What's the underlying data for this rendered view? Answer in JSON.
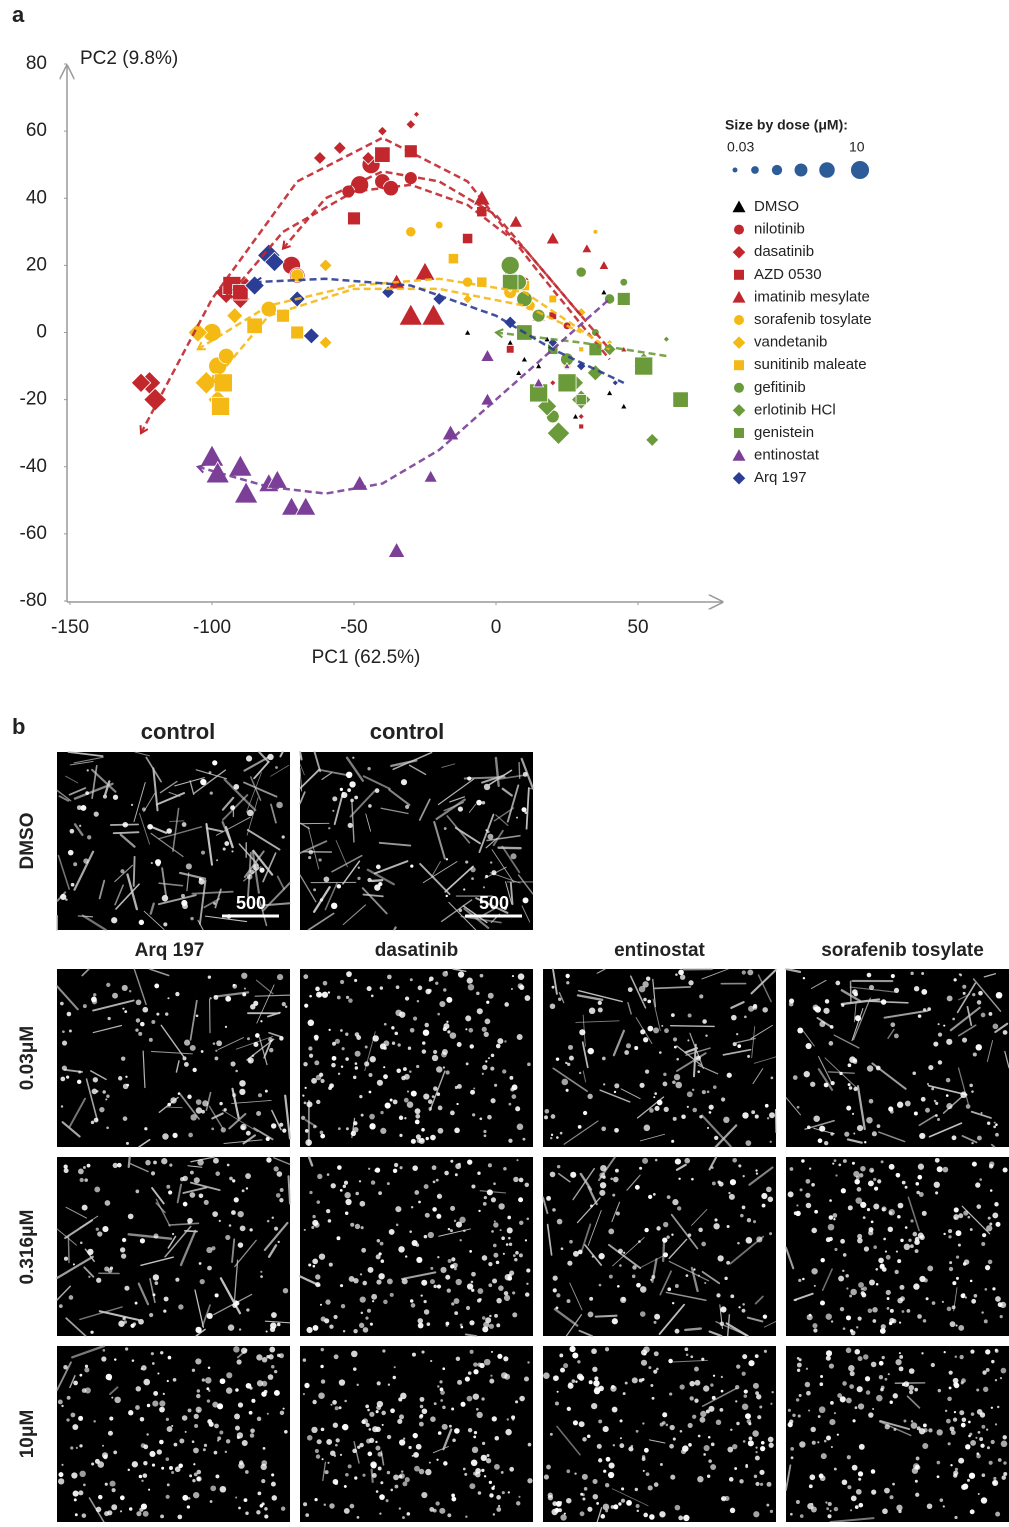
{
  "chart_data": {
    "type": "scatter",
    "panel_label": "a",
    "x_label": "PC1 (62.5%)",
    "y_label": "PC2 (9.8%)",
    "xlim": [
      -150,
      80
    ],
    "ylim": [
      -80,
      80
    ],
    "xticks": [
      -150,
      -100,
      -50,
      0,
      50
    ],
    "yticks": [
      -80,
      -60,
      -40,
      -20,
      0,
      20,
      40,
      60,
      80
    ],
    "grid": false,
    "size_legend": {
      "title": "Size by dose (μM):",
      "doses": [
        0.03,
        0.1,
        0.316,
        1,
        3.16,
        10
      ],
      "color": "#2e5c99"
    },
    "series": [
      {
        "name": "DMSO",
        "color": "#000000",
        "marker": "triangle",
        "x": [
          -10,
          5,
          10,
          15,
          20,
          25,
          30,
          35,
          40,
          45,
          38,
          28,
          18,
          8
        ],
        "values": [
          0,
          -3,
          -8,
          -10,
          5,
          -15,
          -20,
          -5,
          -18,
          -22,
          12,
          -25,
          -2,
          -12
        ],
        "sizes": [
          0.03,
          0.03,
          0.03,
          0.03,
          0.03,
          0.03,
          0.03,
          0.03,
          0.03,
          0.03,
          0.03,
          0.03,
          0.03,
          0.03
        ]
      },
      {
        "name": "nilotinib",
        "color": "#c1272d",
        "marker": "circle",
        "x": [
          -48,
          -44,
          -40,
          -37,
          -52,
          -72,
          -70,
          -30,
          5,
          10,
          25,
          35
        ],
        "values": [
          44,
          50,
          45,
          43,
          42,
          20,
          17,
          46,
          20,
          15,
          2,
          -5
        ],
        "sizes": [
          10,
          10,
          3.16,
          3.16,
          1,
          10,
          3.16,
          1,
          1,
          0.316,
          0.1,
          0.03
        ],
        "trend": {
          "x": [
            -75,
            -60,
            -40,
            -20,
            0,
            20,
            40
          ],
          "y": [
            25,
            40,
            48,
            45,
            35,
            15,
            -5
          ]
        }
      },
      {
        "name": "dasatinib",
        "color": "#c1272d",
        "marker": "diamond",
        "x": [
          -122,
          -120,
          -125,
          -95,
          -90,
          -88,
          -62,
          -55,
          -40,
          -30,
          -28,
          -45,
          20,
          30
        ],
        "values": [
          -15,
          -20,
          -15,
          12,
          10,
          14,
          52,
          55,
          60,
          62,
          65,
          52,
          -15,
          -25
        ],
        "sizes": [
          10,
          10,
          3.16,
          10,
          3.16,
          1,
          0.316,
          0.316,
          0.1,
          0.1,
          0.03,
          0.316,
          0.03,
          0.03
        ],
        "trend": {
          "x": [
            -125,
            -100,
            -70,
            -40,
            -10,
            15,
            40
          ],
          "y": [
            -30,
            10,
            45,
            58,
            45,
            18,
            -8
          ]
        }
      },
      {
        "name": "AZD 0530",
        "color": "#c1272d",
        "marker": "square",
        "x": [
          -93,
          -90,
          -50,
          -40,
          -30,
          -10,
          -5,
          5,
          20,
          30
        ],
        "values": [
          14,
          12,
          34,
          53,
          54,
          28,
          36,
          -5,
          5,
          -28
        ],
        "sizes": [
          10,
          3.16,
          1,
          3.16,
          1,
          0.316,
          0.316,
          0.1,
          0.1,
          0.03
        ],
        "trend": {
          "x": [
            -95,
            -75,
            -50,
            -30,
            -10,
            10,
            30
          ],
          "y": [
            10,
            30,
            42,
            44,
            38,
            25,
            5
          ]
        }
      },
      {
        "name": "imatinib mesylate",
        "color": "#c1272d",
        "marker": "triangle",
        "x": [
          -30,
          -22,
          -25,
          -35,
          -5,
          7,
          20,
          32,
          38,
          5,
          15,
          45
        ],
        "values": [
          5,
          5,
          18,
          15,
          40,
          33,
          28,
          25,
          20,
          18,
          5,
          -5
        ],
        "sizes": [
          10,
          10,
          3.16,
          1,
          1,
          0.316,
          0.316,
          0.1,
          0.1,
          1,
          0.316,
          0.03
        ]
      },
      {
        "name": "sorafenib tosylate",
        "color": "#f5b915",
        "marker": "circle",
        "x": [
          -100,
          -98,
          -95,
          -80,
          -70,
          -30,
          -20,
          -10,
          5,
          12,
          35,
          25
        ],
        "values": [
          0,
          -10,
          -7,
          7,
          17,
          30,
          32,
          15,
          12,
          8,
          30,
          -10
        ],
        "sizes": [
          10,
          10,
          3.16,
          3.16,
          1,
          0.316,
          0.1,
          0.316,
          1,
          0.316,
          0.03,
          0.1
        ],
        "trend": {
          "x": [
            -105,
            -80,
            -50,
            -20,
            10,
            40
          ],
          "y": [
            -5,
            8,
            14,
            16,
            12,
            -5
          ]
        }
      },
      {
        "name": "vandetanib",
        "color": "#f5b915",
        "marker": "diamond",
        "x": [
          -105,
          -102,
          -98,
          -92,
          -60,
          -60,
          -10,
          5,
          30,
          40
        ],
        "values": [
          0,
          -15,
          -20,
          5,
          20,
          -3,
          10,
          14,
          6,
          -3
        ],
        "sizes": [
          3.16,
          10,
          3.16,
          1,
          0.316,
          0.316,
          0.1,
          0.316,
          0.1,
          0.03
        ],
        "trend": {
          "x": [
            -100,
            -80,
            -50,
            -20,
            10,
            30
          ],
          "y": [
            -15,
            5,
            13,
            13,
            8,
            0
          ]
        }
      },
      {
        "name": "sunitinib maleate",
        "color": "#f5b915",
        "marker": "square",
        "x": [
          -97,
          -96,
          -85,
          -75,
          -70,
          -15,
          -5,
          10,
          20,
          30
        ],
        "values": [
          -22,
          -15,
          2,
          5,
          0,
          22,
          15,
          14,
          10,
          -5
        ],
        "sizes": [
          10,
          10,
          3.16,
          1,
          1,
          0.316,
          0.316,
          0.316,
          0.1,
          0.03
        ]
      },
      {
        "name": "gefitinib",
        "color": "#6b9a3a",
        "marker": "circle",
        "x": [
          5,
          10,
          8,
          15,
          25,
          30,
          40,
          45,
          20,
          35
        ],
        "values": [
          20,
          10,
          15,
          5,
          -8,
          18,
          10,
          15,
          -25,
          0
        ],
        "sizes": [
          10,
          3.16,
          3.16,
          1,
          1,
          0.316,
          0.316,
          0.1,
          1,
          0.1
        ]
      },
      {
        "name": "erlotinib HCl",
        "color": "#6b9a3a",
        "marker": "diamond",
        "x": [
          22,
          30,
          18,
          35,
          40,
          52,
          55,
          50,
          28,
          60
        ],
        "values": [
          -30,
          -20,
          -22,
          -12,
          -5,
          -8,
          -32,
          -10,
          -15,
          -2
        ],
        "sizes": [
          10,
          3.16,
          3.16,
          1,
          0.316,
          0.316,
          0.316,
          0.1,
          1,
          0.03
        ],
        "trend": {
          "x": [
            0,
            30,
            60
          ],
          "y": [
            0,
            -3,
            -7
          ]
        }
      },
      {
        "name": "genistein",
        "color": "#6b9a3a",
        "marker": "square",
        "x": [
          15,
          25,
          52,
          65,
          45,
          10,
          5,
          35,
          30,
          20
        ],
        "values": [
          -18,
          -15,
          -10,
          -20,
          10,
          0,
          15,
          -5,
          -20,
          -5
        ],
        "sizes": [
          10,
          10,
          10,
          3.16,
          1,
          3.16,
          3.16,
          1,
          0.316,
          0.316
        ]
      },
      {
        "name": "entinostat",
        "color": "#7b3f98",
        "marker": "triangle",
        "x": [
          -100,
          -98,
          -90,
          -88,
          -80,
          -77,
          -72,
          -67,
          -48,
          -35,
          -16,
          -23,
          -3,
          -3,
          15,
          25
        ],
        "values": [
          -37,
          -42,
          -40,
          -48,
          -45,
          -44,
          -52,
          -52,
          -45,
          -65,
          -30,
          -43,
          -7,
          -20,
          -15,
          -10
        ],
        "sizes": [
          10,
          10,
          10,
          10,
          3.16,
          3.16,
          3.16,
          3.16,
          1,
          1,
          1,
          0.316,
          0.316,
          0.316,
          0.1,
          0.03
        ],
        "trend": {
          "x": [
            -105,
            -80,
            -60,
            -40,
            -20,
            0,
            20,
            40
          ],
          "y": [
            -40,
            -46,
            -48,
            -45,
            -35,
            -20,
            -5,
            10
          ]
        }
      },
      {
        "name": "Arq 197",
        "color": "#2b3d94",
        "marker": "diamond",
        "x": [
          -80,
          -85,
          -78,
          -70,
          -65,
          -38,
          -20,
          5,
          20,
          30,
          42
        ],
        "values": [
          23,
          14,
          21,
          10,
          -1,
          12,
          10,
          3,
          -3,
          -10,
          -15
        ],
        "sizes": [
          10,
          3.16,
          3.16,
          1,
          1,
          0.316,
          0.316,
          0.316,
          0.1,
          0.1,
          0.03
        ],
        "trend": {
          "x": [
            -85,
            -60,
            -30,
            0,
            20,
            45
          ],
          "y": [
            15,
            16,
            14,
            5,
            -5,
            -15
          ]
        }
      }
    ]
  },
  "figure_b": {
    "panel_label": "b",
    "control_headers": [
      "control",
      "control"
    ],
    "scale_bar": "500",
    "columns": [
      "Arq 197",
      "dasatinib",
      "entinostat",
      "sorafenib tosylate"
    ],
    "rows": [
      "DMSO",
      "0.03μM",
      "0.316μM",
      "10μM"
    ]
  }
}
